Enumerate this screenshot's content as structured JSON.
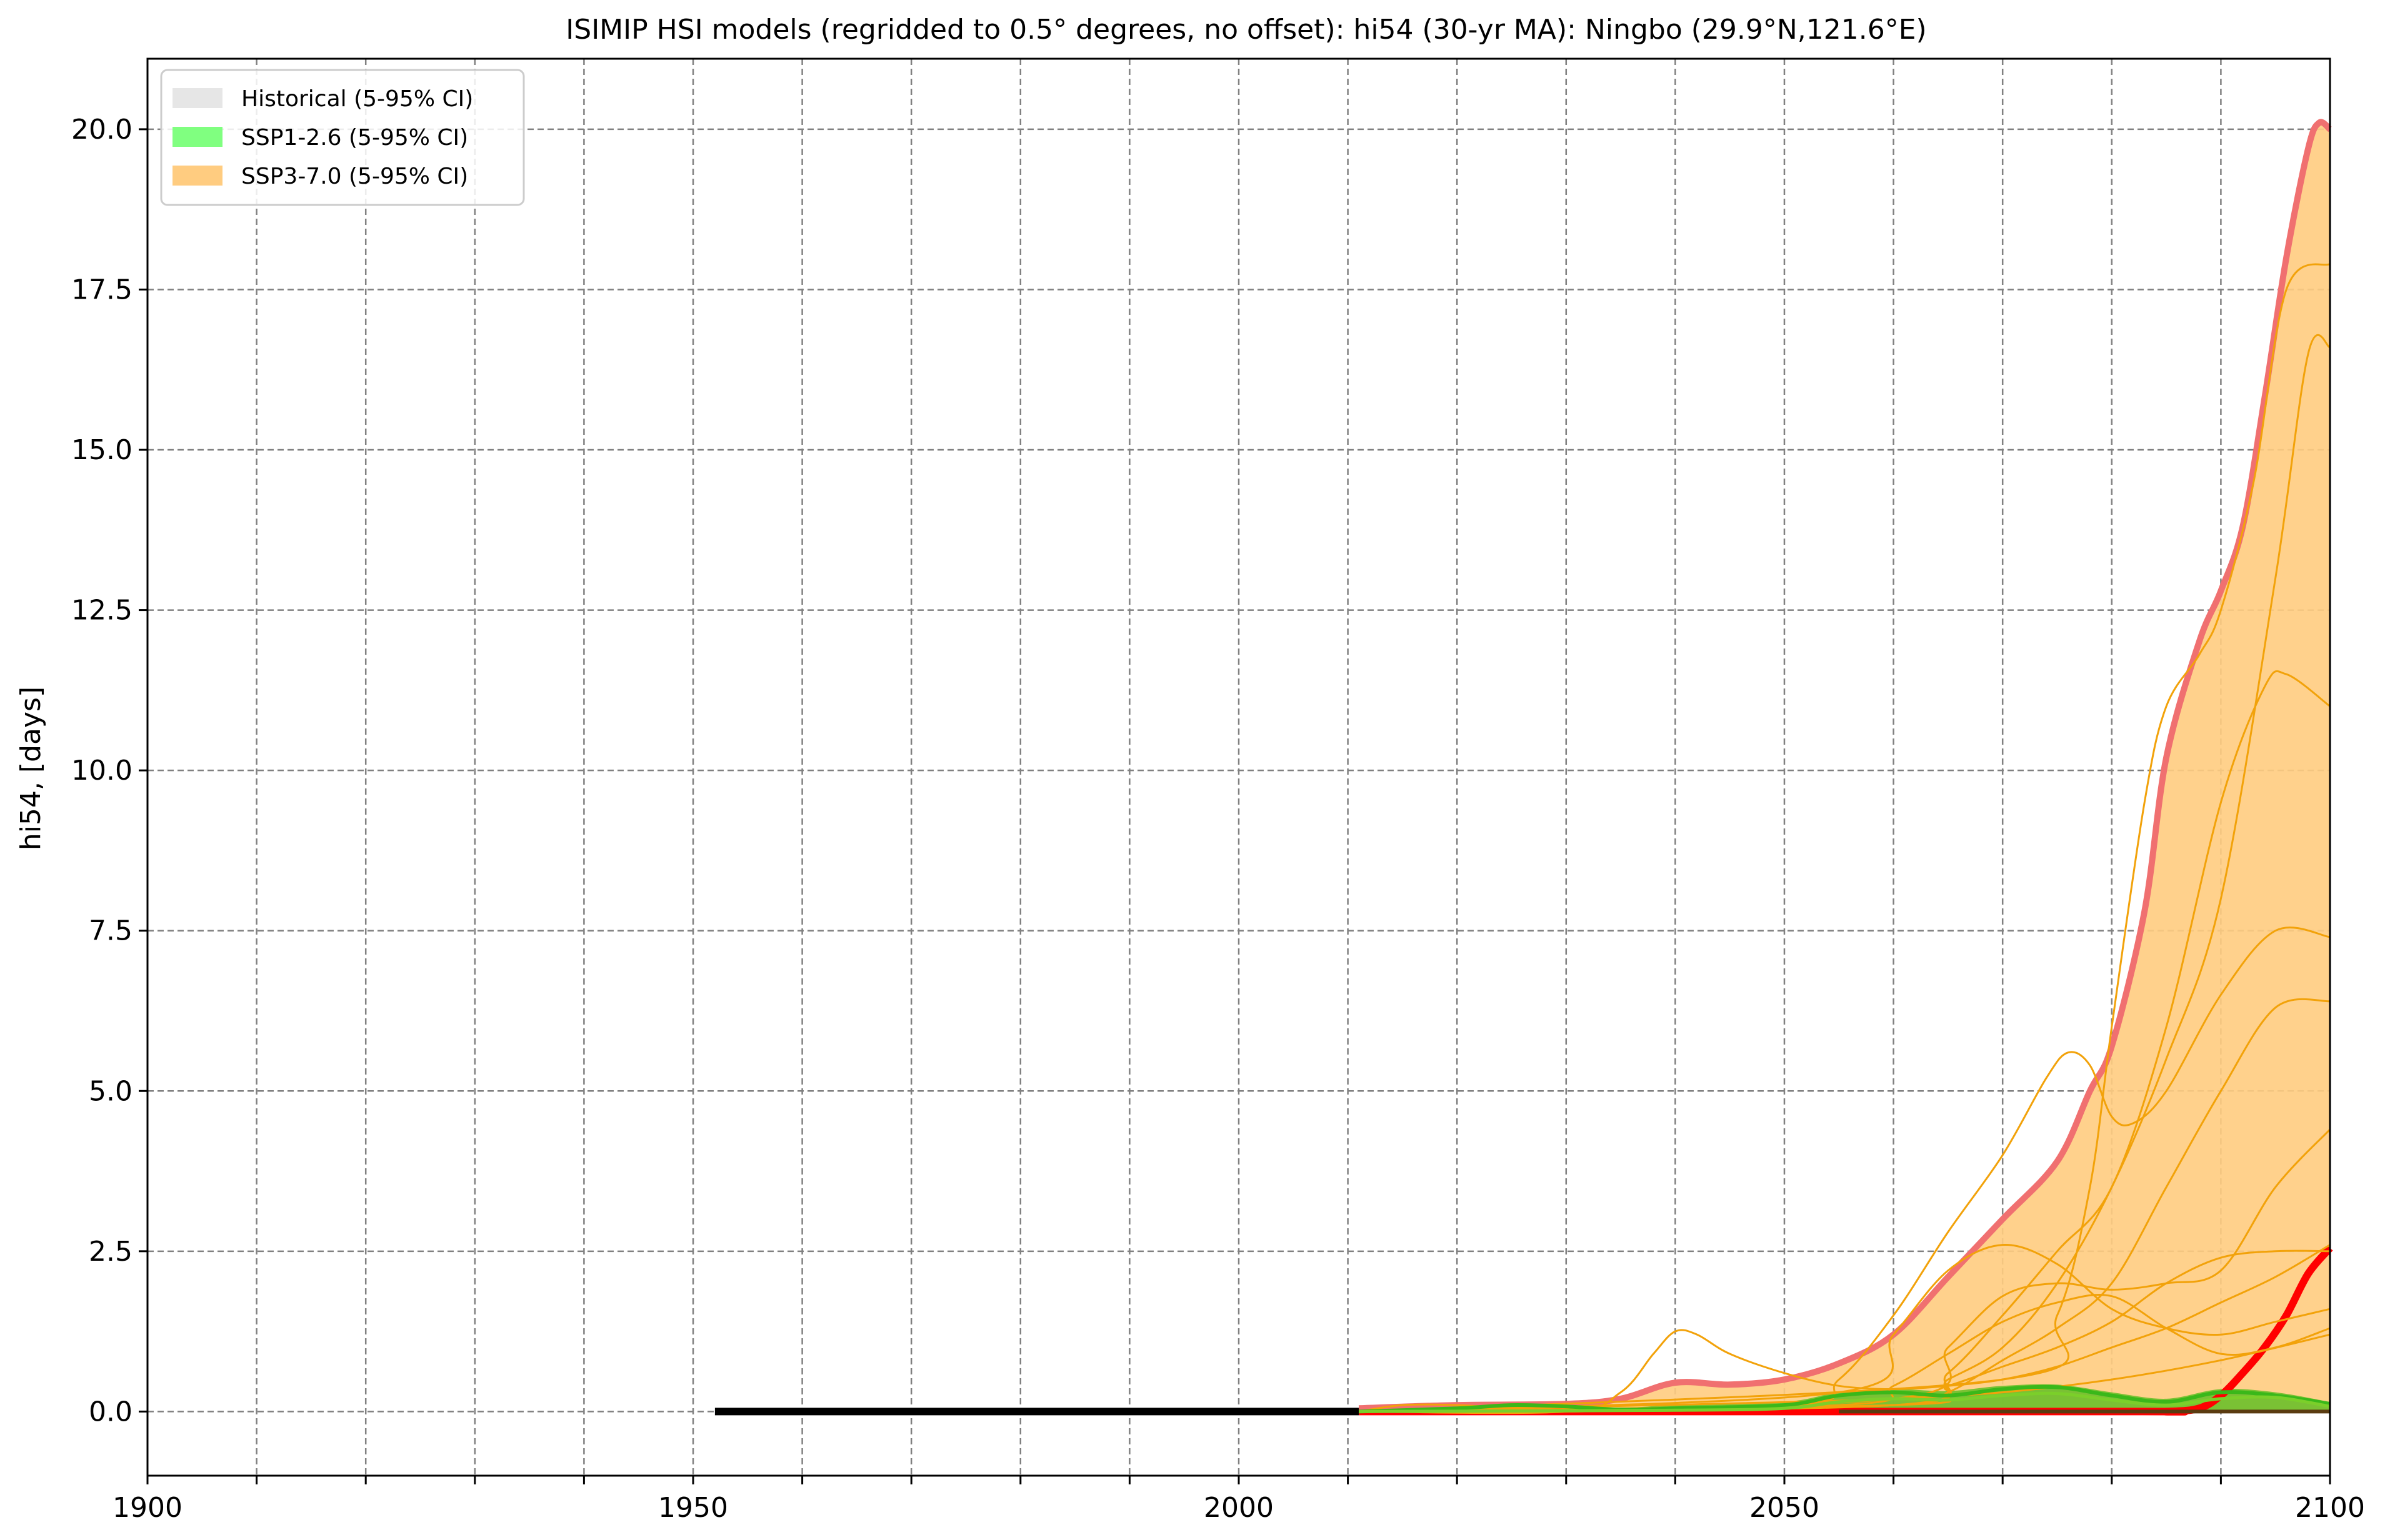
{
  "chart_data": {
    "type": "line",
    "title": "ISIMIP HSI models (regridded to 0.5° degrees, no offset): hi54 (30-yr MA): Ningbo (29.9°N,121.6°E)",
    "xlabel": "",
    "ylabel": "hi54, [days]",
    "xlim": [
      1900,
      2100
    ],
    "ylim": [
      -1.0,
      21.1
    ],
    "xticks": [
      1900,
      1950,
      2000,
      2050,
      2100
    ],
    "xtick_labels": [
      "1900",
      "1950",
      "2000",
      "2050",
      "2100"
    ],
    "yticks": [
      0.0,
      2.5,
      5.0,
      7.5,
      10.0,
      12.5,
      15.0,
      17.5,
      20.0
    ],
    "ytick_labels": [
      "0.0",
      "2.5",
      "5.0",
      "7.5",
      "10.0",
      "12.5",
      "15.0",
      "17.5",
      "20.0"
    ],
    "grid": true,
    "legend_position": "top-left",
    "legend": [
      {
        "label": "Historical (5-95% CI)",
        "color": "#e6e6e6"
      },
      {
        "label": "SSP1-2.6 (5-95% CI)",
        "color": "#80ff80"
      },
      {
        "label": "SSP3-7.0 (5-95% CI)",
        "color": "#ffcc80"
      }
    ],
    "bands": [
      {
        "name": "SSP3-7.0 (5-95% CI)",
        "color": "#ffcc80",
        "x": [
          2011,
          2020,
          2030,
          2035,
          2040,
          2045,
          2050,
          2055,
          2060,
          2065,
          2070,
          2075,
          2078,
          2080,
          2083,
          2085,
          2088,
          2090,
          2092,
          2094,
          2096,
          2098,
          2099,
          2100
        ],
        "upper": [
          0.05,
          0.1,
          0.12,
          0.2,
          0.45,
          0.42,
          0.5,
          0.75,
          1.2,
          2.1,
          3.0,
          3.9,
          5.0,
          5.7,
          7.8,
          10.2,
          12.0,
          12.8,
          13.8,
          15.8,
          18.0,
          19.7,
          20.1,
          20.0
        ],
        "lower": [
          0,
          0,
          0,
          0,
          0,
          0,
          0,
          0,
          0,
          0,
          0,
          0,
          0,
          0,
          0,
          0,
          0,
          0,
          0,
          0,
          0,
          0,
          0,
          0
        ]
      },
      {
        "name": "SSP1-2.6 (5-95% CI)",
        "color": "#6bbf2a",
        "x": [
          2011,
          2020,
          2025,
          2030,
          2035,
          2040,
          2050,
          2055,
          2060,
          2065,
          2070,
          2075,
          2080,
          2085,
          2090,
          2095,
          2100
        ],
        "upper": [
          0.02,
          0.05,
          0.1,
          0.1,
          0.06,
          0.1,
          0.15,
          0.3,
          0.35,
          0.32,
          0.4,
          0.42,
          0.3,
          0.2,
          0.35,
          0.3,
          0.15
        ],
        "lower": [
          0,
          0,
          0,
          0,
          0,
          0,
          0,
          0,
          0,
          0,
          0,
          0,
          0,
          0,
          0,
          0,
          0
        ]
      }
    ],
    "series": [
      {
        "color": "#000000",
        "width": 12,
        "x": [
          1952,
          2011
        ],
        "y": [
          0.0,
          0.0
        ]
      },
      {
        "color": "#ff0000",
        "width": 12,
        "x": [
          2011,
          2080,
          2085,
          2088,
          2090,
          2092,
          2094,
          2096,
          2098,
          2100
        ],
        "y": [
          0.0,
          0.0,
          0.0,
          0.05,
          0.25,
          0.6,
          1.0,
          1.5,
          2.15,
          2.55
        ]
      },
      {
        "color": "#f07070",
        "width": 10,
        "x": [
          2011,
          2020,
          2030,
          2035,
          2040,
          2045,
          2050,
          2055,
          2060,
          2065,
          2070,
          2075,
          2078,
          2080,
          2083,
          2085,
          2088,
          2090,
          2092,
          2094,
          2096,
          2098,
          2099,
          2100
        ],
        "y": [
          0.05,
          0.1,
          0.12,
          0.2,
          0.45,
          0.42,
          0.5,
          0.75,
          1.2,
          2.1,
          3.0,
          3.9,
          5.0,
          5.7,
          7.8,
          10.2,
          12.0,
          12.8,
          13.8,
          15.8,
          18.0,
          19.7,
          20.1,
          20.0
        ]
      },
      {
        "color": "#f2a20a",
        "width": 3,
        "x": [
          2011,
          2030,
          2035,
          2038,
          2040,
          2042,
          2045,
          2050,
          2055,
          2060,
          2065,
          2070,
          2075,
          2080,
          2085,
          2090,
          2095,
          2100
        ],
        "y": [
          0.0,
          0.0,
          0.3,
          0.9,
          1.25,
          1.2,
          0.9,
          0.6,
          0.4,
          0.35,
          0.4,
          0.5,
          0.7,
          1.0,
          1.3,
          1.7,
          2.1,
          2.6
        ]
      },
      {
        "color": "#f2a20a",
        "width": 3,
        "x": [
          2011,
          2050,
          2055,
          2060,
          2065,
          2070,
          2074,
          2076,
          2078,
          2080,
          2082,
          2085,
          2090,
          2095,
          2100
        ],
        "y": [
          0.0,
          0.1,
          0.5,
          1.5,
          2.8,
          4.0,
          5.2,
          5.6,
          5.4,
          4.6,
          4.5,
          5.0,
          6.5,
          7.5,
          7.4
        ]
      },
      {
        "color": "#f2a20a",
        "width": 3,
        "x": [
          2011,
          2060,
          2065,
          2070,
          2075,
          2080,
          2085,
          2090,
          2095,
          2098,
          2100
        ],
        "y": [
          0.0,
          0.1,
          0.5,
          1.0,
          2.0,
          3.5,
          5.5,
          8.0,
          13.0,
          16.5,
          16.6
        ]
      },
      {
        "color": "#f2a20a",
        "width": 3,
        "x": [
          2011,
          2070,
          2075,
          2078,
          2080,
          2083,
          2085,
          2088,
          2090,
          2093,
          2096,
          2100
        ],
        "y": [
          0.0,
          0.5,
          1.5,
          3.5,
          6.0,
          9.5,
          11.0,
          11.8,
          12.5,
          14.5,
          17.5,
          17.9
        ]
      },
      {
        "color": "#f2a20a",
        "width": 3,
        "x": [
          2011,
          2060,
          2065,
          2070,
          2075,
          2080,
          2085,
          2090,
          2094,
          2096,
          2100
        ],
        "y": [
          0.0,
          0.1,
          0.6,
          1.5,
          2.5,
          3.5,
          6.0,
          9.5,
          11.3,
          11.5,
          11.0
        ]
      },
      {
        "color": "#f2a20a",
        "width": 3,
        "x": [
          2011,
          2060,
          2065,
          2070,
          2075,
          2080,
          2085,
          2090,
          2095,
          2100
        ],
        "y": [
          0.0,
          0.1,
          0.3,
          0.8,
          1.3,
          2.0,
          3.5,
          5.0,
          6.3,
          6.4
        ]
      },
      {
        "color": "#f2a20a",
        "width": 3,
        "x": [
          2011,
          2060,
          2065,
          2070,
          2075,
          2080,
          2085,
          2090,
          2095,
          2100
        ],
        "y": [
          0.0,
          0.2,
          1.0,
          1.8,
          2.0,
          1.9,
          2.0,
          2.2,
          3.5,
          4.4
        ]
      },
      {
        "color": "#f2a20a",
        "width": 3,
        "x": [
          2011,
          2055,
          2060,
          2065,
          2070,
          2075,
          2080,
          2085,
          2090,
          2095,
          2100
        ],
        "y": [
          0.0,
          0.3,
          1.2,
          2.2,
          2.6,
          2.3,
          1.6,
          1.3,
          1.2,
          1.4,
          1.6
        ]
      },
      {
        "color": "#f2a20a",
        "width": 3,
        "x": [
          2011,
          2055,
          2060,
          2065,
          2070,
          2075,
          2080,
          2085,
          2090,
          2095,
          2100
        ],
        "y": [
          0.0,
          0.1,
          0.4,
          0.9,
          1.4,
          1.7,
          1.8,
          1.3,
          0.9,
          1.0,
          1.3
        ]
      },
      {
        "color": "#f2a20a",
        "width": 3,
        "x": [
          2011,
          2060,
          2065,
          2070,
          2075,
          2080,
          2085,
          2090,
          2095,
          2100
        ],
        "y": [
          0.0,
          0.2,
          0.4,
          0.7,
          1.0,
          1.4,
          2.0,
          2.4,
          2.5,
          2.5
        ]
      },
      {
        "color": "#f2a20a",
        "width": 3,
        "x": [
          2011,
          2015,
          2020,
          2025,
          2030,
          2040,
          2050,
          2060,
          2070,
          2080,
          2090,
          2100
        ],
        "y": [
          0.0,
          0.1,
          0.1,
          0.05,
          0.0,
          0.05,
          0.1,
          0.2,
          0.3,
          0.5,
          0.8,
          1.2
        ]
      },
      {
        "color": "#3ab81a",
        "width": 6,
        "x": [
          2011,
          2020,
          2025,
          2030,
          2035,
          2040,
          2050,
          2055,
          2060,
          2065,
          2070,
          2075,
          2080,
          2085,
          2090,
          2095,
          2100
        ],
        "y": [
          0.0,
          0.05,
          0.1,
          0.08,
          0.03,
          0.05,
          0.1,
          0.25,
          0.3,
          0.25,
          0.35,
          0.38,
          0.25,
          0.15,
          0.3,
          0.25,
          0.12
        ]
      },
      {
        "color": "#7bcf2a",
        "width": 5,
        "x": [
          2011,
          2040,
          2050,
          2055,
          2060,
          2065,
          2070,
          2075,
          2080,
          2085,
          2090,
          2095,
          2100
        ],
        "y": [
          0.0,
          0.02,
          0.05,
          0.15,
          0.2,
          0.18,
          0.25,
          0.28,
          0.18,
          0.1,
          0.2,
          0.22,
          0.08
        ]
      },
      {
        "color": "#5a3b10",
        "width": 6,
        "x": [
          2055,
          2100
        ],
        "y": [
          0.0,
          0.0
        ]
      }
    ]
  }
}
